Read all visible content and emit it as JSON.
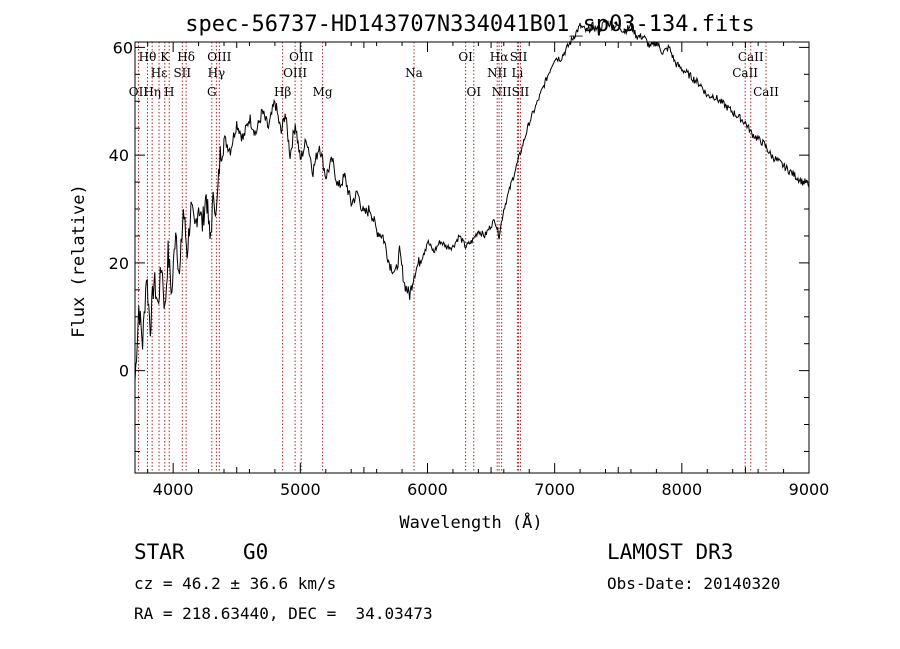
{
  "chart_data": {
    "type": "line",
    "title": "spec-56737-HD143707N334041B01_sp03-134.fits",
    "xlabel": "Wavelength (Å)",
    "ylabel": "Flux (relative)",
    "xlim": [
      3700,
      9000
    ],
    "ylim": [
      -19,
      61
    ],
    "x_ticks": [
      4000,
      5000,
      6000,
      7000,
      8000,
      9000
    ],
    "x_tick_labels": [
      "4000",
      "5000",
      "6000",
      "7000",
      "8000",
      "9000"
    ],
    "y_ticks": [
      0,
      20,
      40
    ],
    "y_tick_labels": [
      "0",
      "20",
      "40"
    ],
    "y_top_label": "60",
    "series": [
      {
        "name": "flux",
        "x": [
          3700,
          3730,
          3760,
          3790,
          3820,
          3850,
          3880,
          3910,
          3935,
          3960,
          3990,
          4020,
          4050,
          4080,
          4110,
          4140,
          4170,
          4200,
          4230,
          4260,
          4290,
          4320,
          4340,
          4370,
          4400,
          4450,
          4500,
          4550,
          4600,
          4650,
          4700,
          4750,
          4800,
          4850,
          4880,
          4920,
          4960,
          5000,
          5050,
          5100,
          5150,
          5200,
          5250,
          5300,
          5350,
          5400,
          5450,
          5500,
          5550,
          5600,
          5650,
          5700,
          5750,
          5780,
          5820,
          5860,
          5895,
          5950,
          6000,
          6050,
          6100,
          6150,
          6200,
          6250,
          6300,
          6350,
          6400,
          6450,
          6500,
          6530,
          6563,
          6600,
          6650,
          6700,
          6750,
          6800,
          6850,
          6900,
          6950,
          7000,
          7050,
          7100,
          7150,
          7200,
          7250,
          7300,
          7350,
          7400,
          7450,
          7500,
          7550,
          7600,
          7650,
          7700,
          7750,
          7800,
          7850,
          7900,
          7950,
          8000,
          8050,
          8100,
          8150,
          8200,
          8250,
          8300,
          8350,
          8400,
          8450,
          8500,
          8550,
          8600,
          8650,
          8700,
          8750,
          8800,
          8850,
          8900,
          8950,
          8980,
          9000
        ],
        "values": [
          -2,
          12,
          5,
          18,
          8,
          17,
          12,
          20,
          11,
          22,
          14,
          27,
          17,
          30,
          22,
          30,
          26,
          31,
          27,
          33,
          24,
          33,
          29,
          40,
          43,
          41,
          46,
          43,
          47,
          44,
          48,
          45,
          50,
          44,
          48,
          40,
          46,
          39,
          43,
          37,
          42,
          36,
          39,
          34,
          36,
          31,
          33,
          29,
          30,
          26,
          25,
          20,
          18,
          22,
          16,
          14,
          18,
          21,
          24,
          22,
          24,
          23,
          23,
          25,
          23,
          24,
          26,
          25,
          27,
          28,
          25,
          30,
          34,
          38,
          42,
          46,
          49,
          52,
          55,
          58,
          58,
          60,
          62,
          64,
          63,
          64,
          63,
          65,
          64,
          64,
          63,
          64,
          62,
          62,
          60,
          61,
          59,
          60,
          57,
          56,
          55,
          54,
          53,
          51,
          51,
          50,
          49,
          48,
          47,
          46,
          44,
          43,
          42,
          40,
          39,
          38,
          37,
          36,
          35,
          35,
          34
        ]
      }
    ],
    "spectral_lines": [
      {
        "label": "Hθ",
        "x": 3798,
        "row": 0
      },
      {
        "label": "OII",
        "x": 3727,
        "row": 2
      },
      {
        "label": "Hη",
        "x": 3835,
        "row": 2
      },
      {
        "label": "Hε",
        "x": 3889,
        "row": 1
      },
      {
        "label": "K",
        "x": 3934,
        "row": 0
      },
      {
        "label": "H",
        "x": 3969,
        "row": 2
      },
      {
        "label": "SII",
        "x": 4072,
        "row": 1
      },
      {
        "label": "Hδ",
        "x": 4102,
        "row": 0
      },
      {
        "label": "G",
        "x": 4304,
        "row": 2
      },
      {
        "label": "OIII",
        "x": 4363,
        "row": 0
      },
      {
        "label": "Hγ",
        "x": 4340,
        "row": 1
      },
      {
        "label": "Hβ",
        "x": 4861,
        "row": 2
      },
      {
        "label": "OIII",
        "x": 4959,
        "row": 1
      },
      {
        "label": "OIII",
        "x": 5007,
        "row": 0
      },
      {
        "label": "Mg",
        "x": 5175,
        "row": 2
      },
      {
        "label": "Na",
        "x": 5894,
        "row": 1
      },
      {
        "label": "OI",
        "x": 6300,
        "row": 0
      },
      {
        "label": "OI",
        "x": 6364,
        "row": 2
      },
      {
        "label": "NII",
        "x": 6548,
        "row": 1
      },
      {
        "label": "Hα",
        "x": 6563,
        "row": 0
      },
      {
        "label": "NII",
        "x": 6583,
        "row": 2
      },
      {
        "label": "Li",
        "x": 6707,
        "row": 1
      },
      {
        "label": "SII",
        "x": 6716,
        "row": 0
      },
      {
        "label": "SII",
        "x": 6731,
        "row": 2
      },
      {
        "label": "CaII",
        "x": 8498,
        "row": 1
      },
      {
        "label": "CaII",
        "x": 8542,
        "row": 0
      },
      {
        "label": "CaII",
        "x": 8662,
        "row": 2
      }
    ],
    "line_color": "#000000",
    "marker_line_color": "#b22222",
    "grid": false
  },
  "info": {
    "object_class": "STAR",
    "subclass": "G0",
    "cz": "cz = 46.2 ± 36.6 km/s",
    "coords": "RA = 218.63440, DEC =  34.03473",
    "survey": "LAMOST DR3",
    "obs_date": "Obs-Date: 20140320"
  }
}
